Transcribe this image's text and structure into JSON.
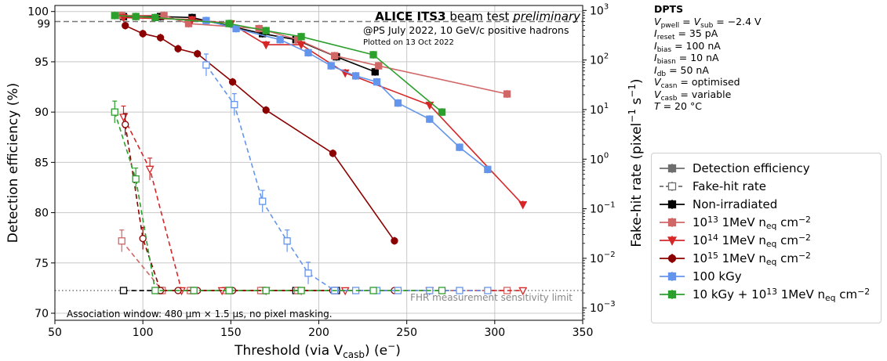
{
  "chart_data": {
    "type": "line",
    "title_bold": "ALICE ITS3",
    "title_middle": " beam test ",
    "title_italic": "preliminary",
    "subtitle": "@PS July 2022, 10 GeV/c positive hadrons",
    "plotted_note": "Plotted on 13 Oct 2022",
    "xlabel_main": "Threshold (via V",
    "xlabel_sub": "casb",
    "xlabel_tail": ") (e",
    "xlabel_sup": "−",
    "xlabel_end": ")",
    "ylabel_left": "Detection efficiency (%)",
    "ylabel_right_main": "Fake-hit rate (pixel",
    "ylabel_right_sup1": "−1",
    "ylabel_right_mid": " s",
    "ylabel_right_sup2": "−1",
    "ylabel_right_end": ")",
    "xlim": [
      50,
      350
    ],
    "ylim_left": [
      69.3,
      100.6
    ],
    "ylim_right_log10": [
      -3.25,
      3.1
    ],
    "x_ticks": [
      50,
      100,
      150,
      200,
      250,
      300,
      350
    ],
    "y_left_ticks": [
      70,
      75,
      80,
      85,
      90,
      95,
      100
    ],
    "y_right_ticks": [
      {
        "exp": -3,
        "base": "10",
        "sup": "−3"
      },
      {
        "exp": -2,
        "base": "10",
        "sup": "−2"
      },
      {
        "exp": -1,
        "base": "10",
        "sup": "−1"
      },
      {
        "exp": 0,
        "base": "10",
        "sup": "0"
      },
      {
        "exp": 1,
        "base": "10",
        "sup": "1"
      },
      {
        "exp": 2,
        "base": "10",
        "sup": "2"
      },
      {
        "exp": 3,
        "base": "10",
        "sup": "3"
      }
    ],
    "ref_line_value": 99,
    "ref_line_label": "99",
    "sensitivity_limit_log10": -2.65,
    "sensitivity_label": "FHR measurement sensitivity limit",
    "association_note": "Association window: 480 µm × 1.5 µs, no pixel masking.",
    "grid": true,
    "series": [
      {
        "name": "Non-irradiated",
        "color": "#000000",
        "marker": "square",
        "efficiency": [
          [
            89,
            99.5
          ],
          [
            110,
            99.5
          ],
          [
            128,
            99.4
          ],
          [
            168,
            97.8
          ],
          [
            187,
            97.2
          ],
          [
            210,
            95.5
          ],
          [
            232,
            94.0
          ]
        ],
        "fhr_log10": [
          [
            89,
            -2.65
          ],
          [
            110,
            -2.65
          ],
          [
            128,
            -2.65
          ],
          [
            149,
            -2.65
          ],
          [
            168,
            -2.65
          ],
          [
            187,
            -2.65
          ],
          [
            210,
            -2.65
          ]
        ]
      },
      {
        "name": "10^13 1MeV neq cm^-2",
        "name_parts": {
          "pre": "10",
          "sup": "13",
          "mid": " 1MeV n",
          "sub": "eq",
          "unit": " cm",
          "sup2": "−2"
        },
        "color": "#d06767",
        "marker": "square",
        "efficiency": [
          [
            88,
            99.6
          ],
          [
            112,
            99.6
          ],
          [
            126,
            98.8
          ],
          [
            166,
            98.3
          ],
          [
            188,
            97.2
          ],
          [
            209,
            95.6
          ],
          [
            234,
            94.6
          ],
          [
            307,
            91.8
          ]
        ],
        "fhr_log10": [
          [
            88,
            -1.65
          ],
          [
            111,
            -2.65
          ],
          [
            127,
            -2.65
          ],
          [
            147,
            -2.65
          ],
          [
            167,
            -2.65
          ],
          [
            188,
            -2.65
          ],
          [
            209,
            -2.65
          ],
          [
            307,
            -2.65
          ]
        ]
      },
      {
        "name": "10^14 1MeV neq cm^-2",
        "name_parts": {
          "pre": "10",
          "sup": "14",
          "mid": " 1MeV n",
          "sub": "eq",
          "unit": " cm",
          "sup2": "−2"
        },
        "color": "#d62728",
        "marker": "triangle-down",
        "efficiency": [
          [
            89,
            99.4
          ],
          [
            128,
            99.2
          ],
          [
            150,
            98.8
          ],
          [
            170,
            96.7
          ],
          [
            190,
            96.7
          ],
          [
            215,
            93.9
          ],
          [
            263,
            90.7
          ],
          [
            316,
            80.8
          ]
        ],
        "fhr_log10": [
          [
            89,
            0.85
          ],
          [
            104,
            -0.2
          ],
          [
            122,
            -2.65
          ],
          [
            145,
            -2.65
          ],
          [
            170,
            -2.65
          ],
          [
            190,
            -2.65
          ],
          [
            215,
            -2.65
          ],
          [
            263,
            -2.65
          ],
          [
            316,
            -2.65
          ]
        ]
      },
      {
        "name": "10^15 1MeV neq cm^-2",
        "name_parts": {
          "pre": "10",
          "sup": "15",
          "mid": " 1MeV n",
          "sub": "eq",
          "unit": " cm",
          "sup2": "−2"
        },
        "color": "#8b0000",
        "marker": "circle",
        "efficiency": [
          [
            90,
            98.6
          ],
          [
            100,
            97.8
          ],
          [
            110,
            97.4
          ],
          [
            120,
            96.3
          ],
          [
            131,
            95.8
          ],
          [
            151,
            93.0
          ],
          [
            170,
            90.2
          ],
          [
            208,
            85.9
          ],
          [
            243,
            77.2
          ]
        ],
        "fhr_log10": [
          [
            90,
            0.7
          ],
          [
            100,
            -1.6
          ],
          [
            110,
            -2.65
          ],
          [
            120,
            -2.65
          ],
          [
            131,
            -2.65
          ],
          [
            151,
            -2.65
          ],
          [
            170,
            -2.65
          ],
          [
            208,
            -2.65
          ],
          [
            243,
            -2.65
          ]
        ]
      },
      {
        "name": "100 kGy",
        "color": "#6495ed",
        "marker": "square",
        "efficiency": [
          [
            136,
            99.1
          ],
          [
            153,
            98.3
          ],
          [
            178,
            97.2
          ],
          [
            194,
            95.9
          ],
          [
            207,
            94.6
          ],
          [
            221,
            93.6
          ],
          [
            233,
            93.0
          ],
          [
            245,
            90.9
          ],
          [
            263,
            89.3
          ],
          [
            280,
            86.5
          ],
          [
            296,
            84.3
          ]
        ],
        "fhr_log10": [
          [
            136,
            1.9
          ],
          [
            152,
            1.1
          ],
          [
            168,
            -0.85
          ],
          [
            182,
            -1.65
          ],
          [
            194,
            -2.3
          ],
          [
            209,
            -2.65
          ],
          [
            221,
            -2.65
          ],
          [
            233,
            -2.65
          ],
          [
            245,
            -2.65
          ],
          [
            263,
            -2.65
          ],
          [
            280,
            -2.65
          ],
          [
            296,
            -2.65
          ]
        ]
      },
      {
        "name": "10 kGy + 10^13 1MeV neq cm^-2",
        "name_parts": {
          "pre": "10 kGy + 10",
          "sup": "13",
          "mid": " 1MeV n",
          "sub": "eq",
          "unit": " cm",
          "sup2": "−2"
        },
        "color": "#2ca02c",
        "marker": "square",
        "efficiency": [
          [
            84,
            99.6
          ],
          [
            96,
            99.5
          ],
          [
            107,
            99.4
          ],
          [
            149,
            98.8
          ],
          [
            170,
            98.1
          ],
          [
            190,
            97.5
          ],
          [
            231,
            95.7
          ],
          [
            270,
            90.0
          ]
        ],
        "fhr_log10": [
          [
            84,
            0.95
          ],
          [
            96,
            -0.4
          ],
          [
            107,
            -2.65
          ],
          [
            129,
            -2.65
          ],
          [
            149,
            -2.65
          ],
          [
            170,
            -2.65
          ],
          [
            190,
            -2.65
          ],
          [
            231,
            -2.65
          ],
          [
            270,
            -2.65
          ]
        ]
      }
    ],
    "legend": {
      "placement": "lower-right outside",
      "style_entries": [
        {
          "label": "Detection efficiency",
          "color": "#6e6e6e",
          "dashed": false,
          "filled": true
        },
        {
          "label": "Fake-hit rate",
          "color": "#6e6e6e",
          "dashed": true,
          "filled": false
        }
      ]
    }
  },
  "params": {
    "title": "DPTS",
    "lines": [
      {
        "main": "V",
        "sub": "pwell",
        "mid": " = V",
        "sub2": "sub",
        "rest": " = −2.4 V"
      },
      {
        "main": "I",
        "sub": "reset",
        "rest": " = 35 pA"
      },
      {
        "main": "I",
        "sub": "bias",
        "rest": " = 100 nA"
      },
      {
        "main": "I",
        "sub": "biasn",
        "rest": " = 10 nA"
      },
      {
        "main": "I",
        "sub": "db",
        "rest": " = 50 nA"
      },
      {
        "main": "V",
        "sub": "casn",
        "rest": " = optimised"
      },
      {
        "main": "V",
        "sub": "casb",
        "rest": " = variable"
      },
      {
        "main": "T",
        "rest": " = 20 °C"
      }
    ]
  }
}
